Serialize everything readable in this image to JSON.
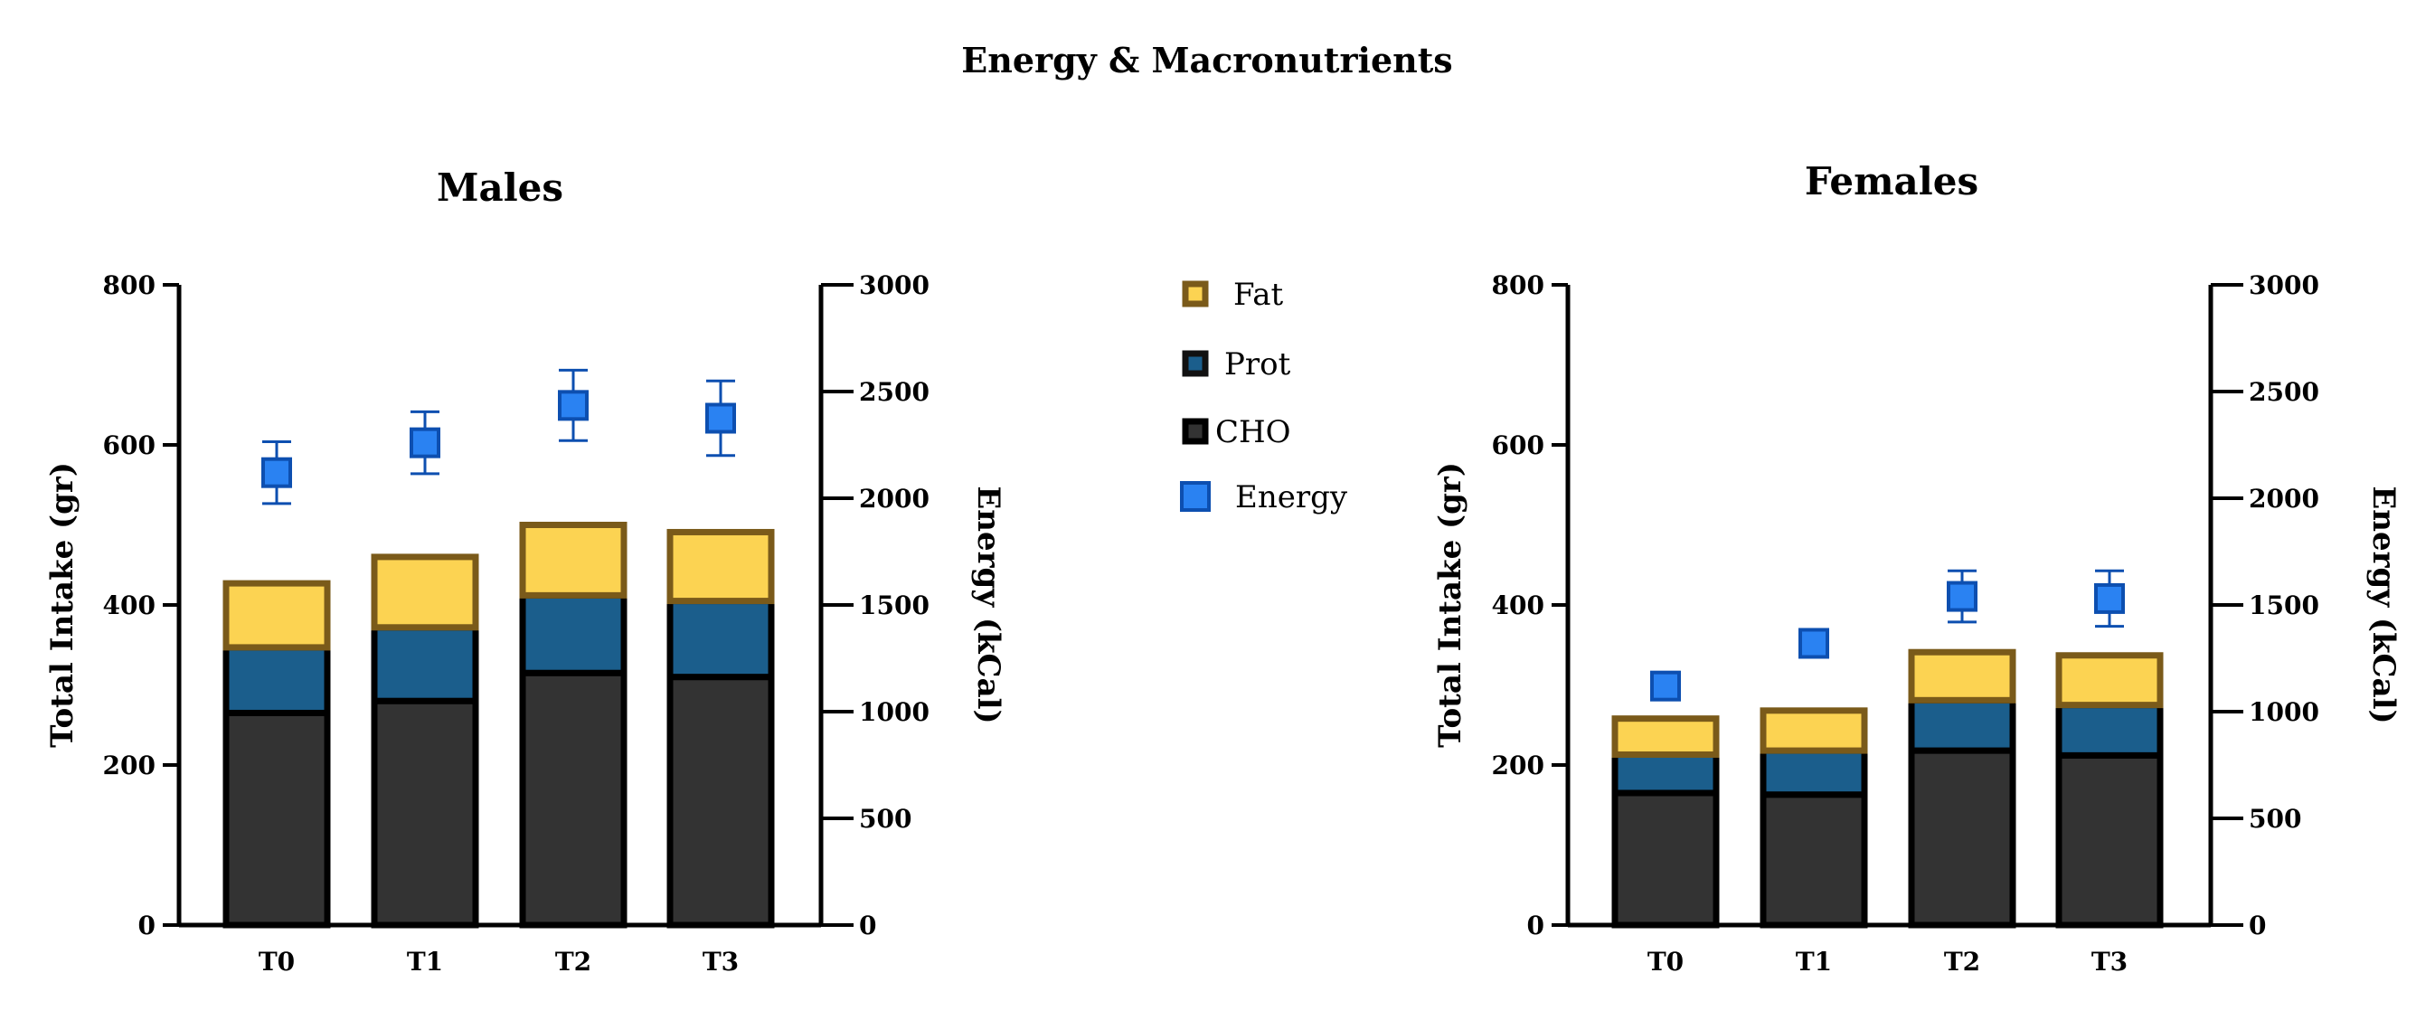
{
  "figure_title": "Energy & Macronutrients",
  "legend": [
    {
      "label": "Fat",
      "key": "fat"
    },
    {
      "label": "Prot",
      "key": "prot"
    },
    {
      "label": "CHO",
      "key": "cho"
    },
    {
      "label": "Energy",
      "key": "energy"
    }
  ],
  "colors": {
    "cho": "#333333",
    "prot": "#1b5e8c",
    "fat": "#fcd352",
    "edge": "#000000",
    "fat_edge": "#7a5a1a",
    "energy": "#2a82f2",
    "energy_edge": "#0d4fb0"
  },
  "chart_data": [
    {
      "type": "bar",
      "title": "Males",
      "categories": [
        "T0",
        "T1",
        "T2",
        "T3"
      ],
      "series": [
        {
          "name": "CHO",
          "values": [
            265,
            280,
            315,
            310
          ]
        },
        {
          "name": "Prot",
          "values": [
            82,
            92,
            97,
            95
          ]
        },
        {
          "name": "Fat",
          "values": [
            80,
            88,
            88,
            86
          ]
        }
      ],
      "energy": {
        "name": "Energy",
        "values": [
          2120,
          2260,
          2435,
          2375
        ],
        "err": [
          145,
          145,
          165,
          175
        ]
      },
      "ylabel": "Total Intake (gr)",
      "ylim": [
        0,
        800
      ],
      "yticks": [
        0,
        200,
        400,
        600,
        800
      ],
      "y2label": "Energy (kCal)",
      "y2lim": [
        0,
        3000
      ],
      "y2ticks": [
        0,
        500,
        1000,
        1500,
        2000,
        2500,
        3000
      ]
    },
    {
      "type": "bar",
      "title": "Females",
      "categories": [
        "T0",
        "T1",
        "T2",
        "T3"
      ],
      "series": [
        {
          "name": "CHO",
          "values": [
            165,
            163,
            218,
            212
          ]
        },
        {
          "name": "Prot",
          "values": [
            48,
            55,
            63,
            63
          ]
        },
        {
          "name": "Fat",
          "values": [
            45,
            50,
            60,
            62
          ]
        }
      ],
      "energy": {
        "name": "Energy",
        "values": [
          1120,
          1320,
          1540,
          1530
        ],
        "err": [
          0,
          0,
          120,
          130
        ]
      },
      "ylabel": "Total Intake (gr)",
      "ylim": [
        0,
        800
      ],
      "yticks": [
        0,
        200,
        400,
        600,
        800
      ],
      "y2label": "Energy (kCal)",
      "y2lim": [
        0,
        3000
      ],
      "y2ticks": [
        0,
        500,
        1000,
        1500,
        2000,
        2500,
        3000
      ]
    }
  ]
}
